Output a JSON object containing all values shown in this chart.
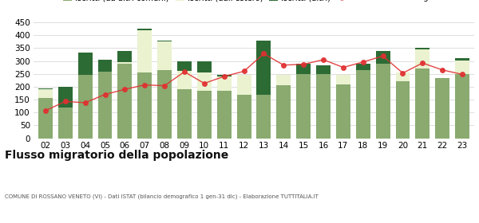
{
  "years": [
    "02",
    "03",
    "04",
    "05",
    "06",
    "07",
    "08",
    "09",
    "10",
    "11",
    "12",
    "13",
    "14",
    "15",
    "16",
    "17",
    "18",
    "19",
    "20",
    "21",
    "22",
    "23"
  ],
  "iscritti_altri_comuni": [
    155,
    118,
    245,
    258,
    290,
    255,
    265,
    190,
    185,
    185,
    170,
    170,
    205,
    250,
    248,
    210,
    265,
    288,
    220,
    270,
    235,
    248
  ],
  "iscritti_estero": [
    35,
    0,
    0,
    0,
    5,
    165,
    110,
    70,
    70,
    55,
    75,
    0,
    40,
    0,
    0,
    35,
    0,
    0,
    35,
    75,
    0,
    55
  ],
  "iscritti_altri": [
    5,
    82,
    88,
    48,
    45,
    5,
    5,
    40,
    45,
    5,
    0,
    210,
    0,
    40,
    35,
    0,
    25,
    50,
    0,
    5,
    0,
    8
  ],
  "cancellati": [
    107,
    143,
    138,
    170,
    190,
    207,
    204,
    258,
    213,
    240,
    260,
    328,
    284,
    287,
    305,
    275,
    296,
    319,
    253,
    292,
    265,
    248
  ],
  "color_altri_comuni": "#8aaa70",
  "color_estero": "#eaf2d0",
  "color_altri": "#2d6b35",
  "color_cancellati": "#e03030",
  "ylim": [
    0,
    450
  ],
  "yticks": [
    0,
    50,
    100,
    150,
    200,
    250,
    300,
    350,
    400,
    450
  ],
  "title": "Flusso migratorio della popolazione",
  "subtitle": "COMUNE DI ROSSANO VENETO (VI) - Dati ISTAT (bilancio demografico 1 gen-31 dic) - Elaborazione TUTTITALIA.IT",
  "bg_color": "#ffffff",
  "grid_color": "#d8d8d8"
}
